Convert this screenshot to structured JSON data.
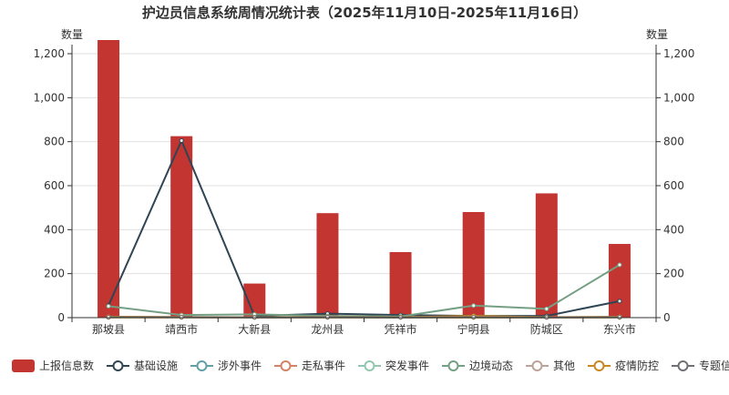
{
  "chart_data": {
    "type": "bar",
    "title": "护边员信息系统周情况统计表（2025年11月10日-2025年11月16日）",
    "y_left_label": "数量",
    "y_right_label": "数量",
    "categories": [
      "那坡县",
      "靖西市",
      "大新县",
      "龙州县",
      "凭祥市",
      "宁明县",
      "防城区",
      "东兴市"
    ],
    "ylim": [
      0,
      1200
    ],
    "yticks": [
      "0",
      "200",
      "400",
      "600",
      "800",
      "1,000",
      "1,200"
    ],
    "grid": true,
    "legend_position": "bottom",
    "bar_series": {
      "name": "上报信息数",
      "color": "#c23531",
      "values": [
        1265,
        825,
        155,
        475,
        298,
        480,
        565,
        335
      ]
    },
    "line_series": [
      {
        "name": "基础设施",
        "color": "#2f4554",
        "values": [
          55,
          805,
          8,
          18,
          12,
          8,
          8,
          75
        ]
      },
      {
        "name": "涉外事件",
        "color": "#61a0a8",
        "values": [
          2,
          2,
          1,
          1,
          1,
          1,
          1,
          1
        ]
      },
      {
        "name": "走私事件",
        "color": "#d48265",
        "values": [
          3,
          2,
          1,
          2,
          2,
          1,
          1,
          2
        ]
      },
      {
        "name": "突发事件",
        "color": "#91c7ae",
        "values": [
          1,
          1,
          1,
          1,
          1,
          1,
          1,
          1
        ]
      },
      {
        "name": "边境动态",
        "color": "#749f83",
        "values": [
          52,
          12,
          15,
          8,
          5,
          55,
          40,
          240
        ]
      },
      {
        "name": "其他",
        "color": "#ca8622",
        "values": [
          4,
          3,
          2,
          3,
          2,
          8,
          2,
          4
        ],
        "legend_color": "#bda29a"
      },
      {
        "name": "疫情防控",
        "color": "#ca8622",
        "values": [
          1,
          1,
          1,
          1,
          1,
          1,
          1,
          1
        ]
      },
      {
        "name": "专题信息",
        "color": "#6e7074",
        "values": [
          2,
          2,
          1,
          2,
          1,
          2,
          1,
          2
        ]
      }
    ]
  }
}
